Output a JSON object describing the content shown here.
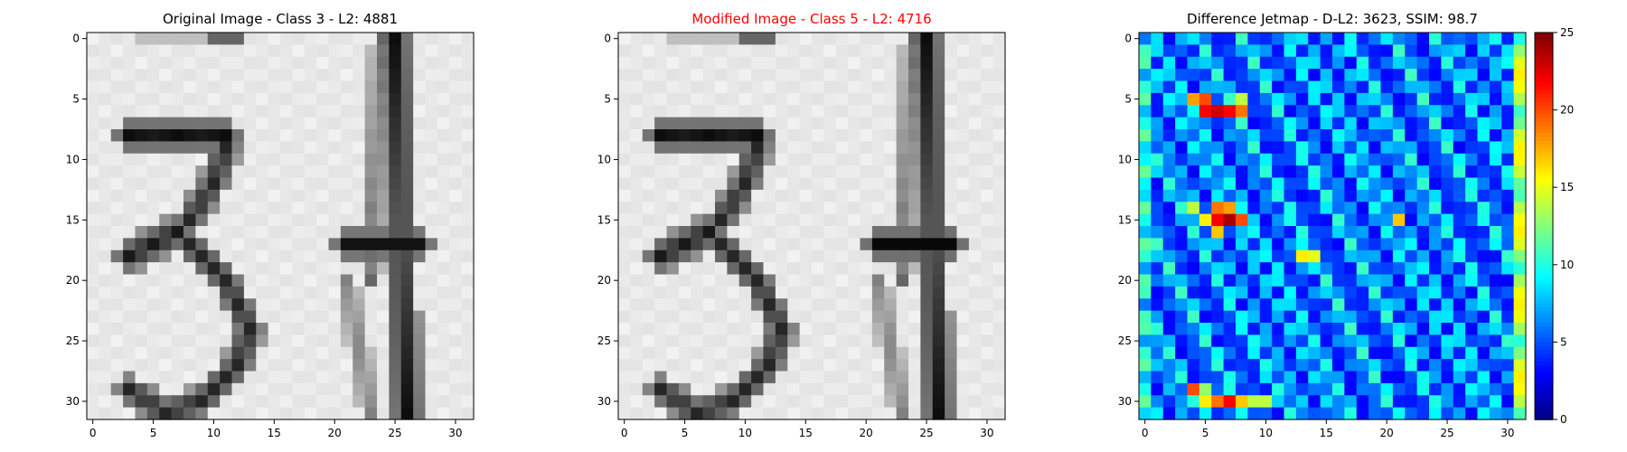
{
  "panels": [
    {
      "title": "Original Image - Class 3 - L2: 4881",
      "title_color": "#000000",
      "colormap": "gray"
    },
    {
      "title": "Modified Image - Class 5 - L2: 4716",
      "title_color": "#ff0000",
      "colormap": "gray"
    },
    {
      "title": "Difference Jetmap - D-L2: 3623, SSIM: 98.7",
      "title_color": "#000000",
      "colormap": "jet"
    }
  ],
  "axis_ticks": [
    "0",
    "5",
    "10",
    "15",
    "20",
    "25",
    "30"
  ],
  "colorbar": {
    "ticks": [
      "0",
      "5",
      "10",
      "15",
      "20",
      "25"
    ],
    "min": 0,
    "max": 25
  },
  "chart_data": [
    {
      "type": "heatmap",
      "title": "Original Image - Class 3 - L2: 4881",
      "grid_size": [
        32,
        32
      ],
      "xlim": [
        -0.5,
        31.5
      ],
      "ylim": [
        31.5,
        -0.5
      ],
      "content": "grayscale digit image showing '3' on left and a vertical stroke '4' on right"
    },
    {
      "type": "heatmap",
      "title": "Modified Image - Class 5 - L2: 4716",
      "grid_size": [
        32,
        32
      ],
      "xlim": [
        -0.5,
        31.5
      ],
      "ylim": [
        31.5,
        -0.5
      ]
    },
    {
      "type": "heatmap",
      "title": "Difference Jetmap - D-L2: 3623, SSIM: 98.7",
      "grid_size": [
        32,
        32
      ],
      "xlim": [
        -0.5,
        31.5
      ],
      "ylim": [
        31.5,
        -0.5
      ],
      "colorbar_range": [
        0,
        25
      ],
      "hotspots": [
        {
          "row": 6,
          "col": 6,
          "value": 22
        },
        {
          "row": 6,
          "col": 7,
          "value": 22
        },
        {
          "row": 15,
          "col": 6,
          "value": 22
        },
        {
          "row": 15,
          "col": 7,
          "value": 24
        },
        {
          "row": 30,
          "col": 7,
          "value": 22
        }
      ]
    }
  ]
}
